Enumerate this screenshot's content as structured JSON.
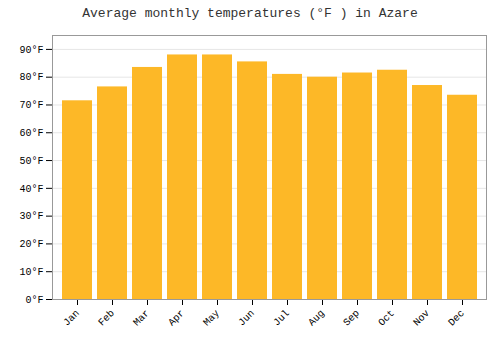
{
  "chart_data": {
    "type": "bar",
    "title": "Average monthly temperatures (°F ) in Azare",
    "categories": [
      "Jan",
      "Feb",
      "Mar",
      "Apr",
      "May",
      "Jun",
      "Jul",
      "Aug",
      "Sep",
      "Oct",
      "Nov",
      "Dec"
    ],
    "values": [
      71.5,
      76.5,
      83.5,
      88.0,
      88.0,
      85.5,
      81.0,
      80.0,
      81.5,
      82.5,
      77.0,
      73.5
    ],
    "color": "#FDB827",
    "ylim": [
      0,
      95
    ],
    "yticks": [
      {
        "value": 0,
        "label": "0°F"
      },
      {
        "value": 10,
        "label": "10°F"
      },
      {
        "value": 20,
        "label": "20°F"
      },
      {
        "value": 30,
        "label": "30°F"
      },
      {
        "value": 40,
        "label": "40°F"
      },
      {
        "value": 50,
        "label": "50°F"
      },
      {
        "value": 60,
        "label": "60°F"
      },
      {
        "value": 70,
        "label": "70°F"
      },
      {
        "value": 80,
        "label": "80°F"
      },
      {
        "value": 90,
        "label": "90°F"
      }
    ],
    "grid": true
  }
}
